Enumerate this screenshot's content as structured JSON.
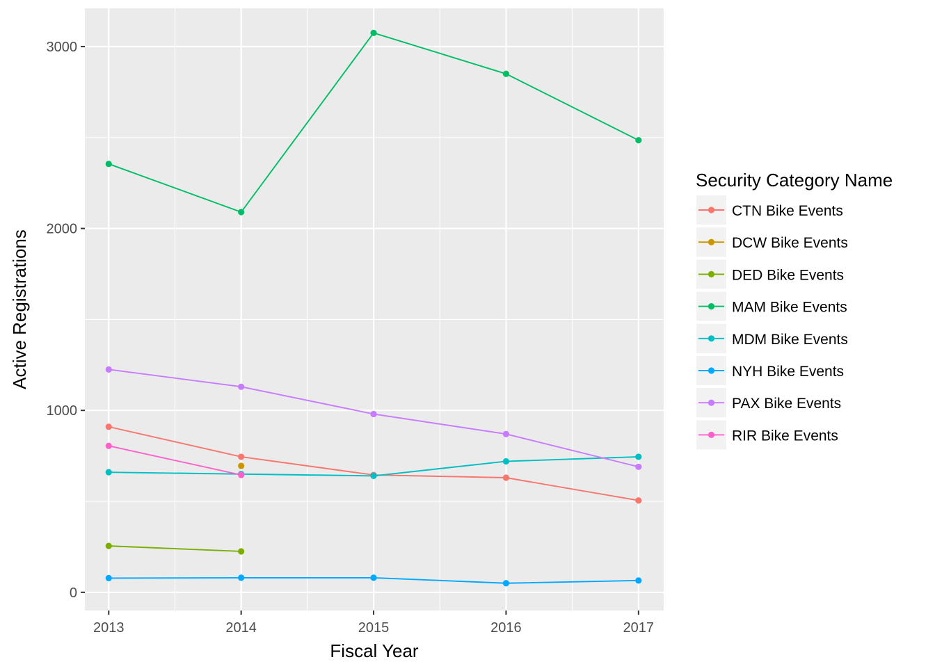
{
  "chart_data": {
    "type": "line",
    "title": "",
    "xlabel": "Fiscal Year",
    "ylabel": "Active Registrations",
    "x": [
      2013,
      2014,
      2015,
      2016,
      2017
    ],
    "x_tick_labels": [
      "2013",
      "2014",
      "2015",
      "2016",
      "2017"
    ],
    "y_ticks": [
      0,
      1000,
      2000,
      3000
    ],
    "y_tick_labels": [
      "0",
      "1000",
      "2000",
      "3000"
    ],
    "xlim": [
      2012.82,
      2017.19
    ],
    "ylim": [
      -100,
      3210
    ],
    "grid": true,
    "legend_position": "right",
    "legend_title": "Security Category Name",
    "panel_color": "#ebebeb",
    "series": [
      {
        "name": "CTN Bike Events",
        "color": "#F8766D",
        "values": [
          910,
          745,
          645,
          630,
          505
        ]
      },
      {
        "name": "DCW Bike Events",
        "color": "#CD9600",
        "values": [
          null,
          695,
          null,
          null,
          null
        ]
      },
      {
        "name": "DED Bike Events",
        "color": "#7CAE00",
        "values": [
          255,
          225,
          null,
          null,
          null
        ]
      },
      {
        "name": "MAM Bike Events",
        "color": "#00BE67",
        "values": [
          2355,
          2090,
          3075,
          2850,
          2485
        ]
      },
      {
        "name": "MDM Bike Events",
        "color": "#00BFC4",
        "values": [
          660,
          650,
          640,
          720,
          745
        ]
      },
      {
        "name": "NYH Bike Events",
        "color": "#00A9FF",
        "values": [
          78,
          80,
          80,
          50,
          65
        ]
      },
      {
        "name": "PAX Bike Events",
        "color": "#C77CFF",
        "values": [
          1225,
          1130,
          980,
          870,
          690
        ]
      },
      {
        "name": "RIR Bike Events",
        "color": "#FF61CC",
        "values": [
          805,
          645,
          null,
          null,
          null
        ]
      }
    ]
  }
}
